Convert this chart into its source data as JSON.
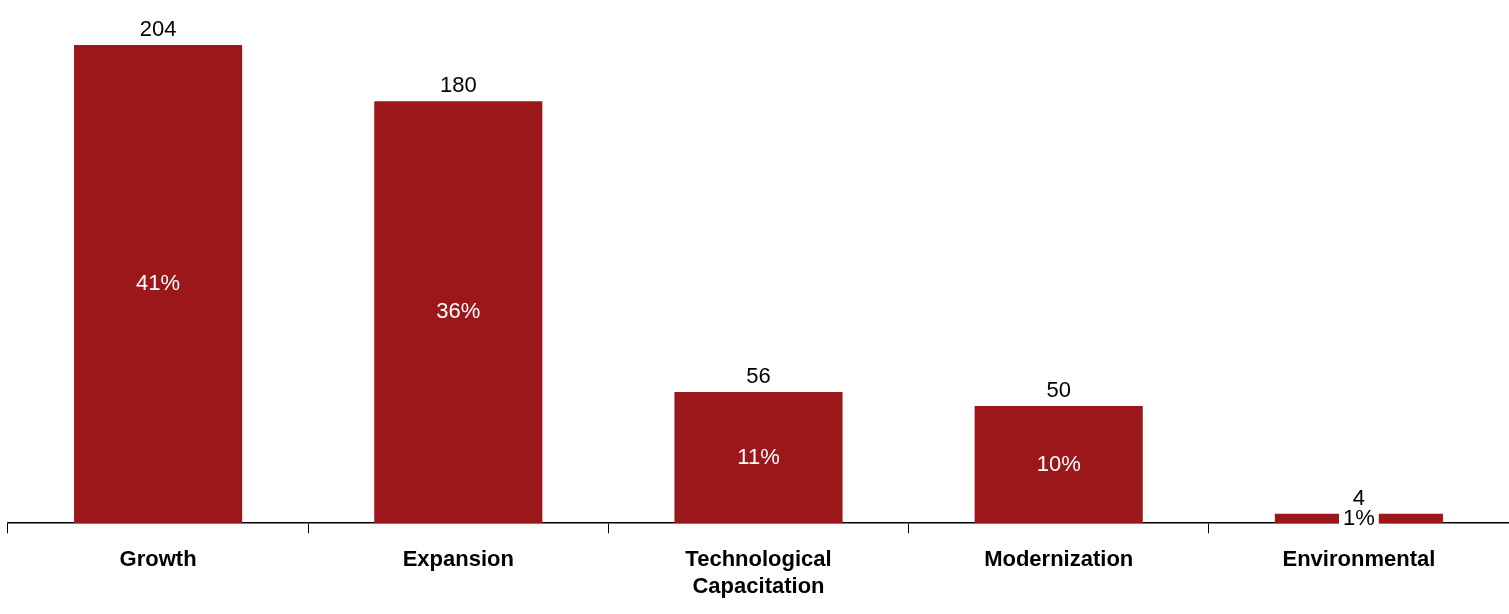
{
  "chart_data": {
    "type": "bar",
    "categories": [
      "Growth",
      "Expansion",
      "Technological Capacitation",
      "Modernization",
      "Environmental"
    ],
    "values": [
      204,
      180,
      56,
      50,
      4
    ],
    "data_labels": true,
    "annotations": [
      "41%",
      "36%",
      "11%",
      "10%",
      "1%"
    ],
    "color": "#9b1719",
    "tick_labels": "x",
    "grid": false,
    "legend": false
  }
}
